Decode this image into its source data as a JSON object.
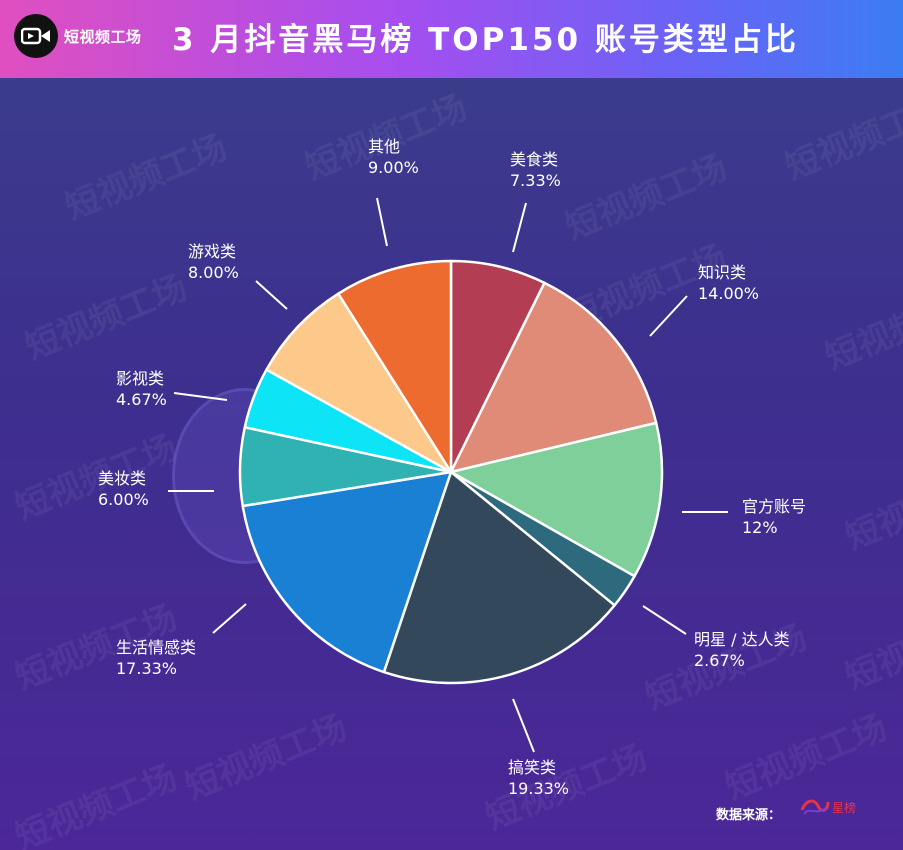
{
  "header": {
    "brand": "短视频工场",
    "title": "3 月抖音黑马榜 TOP150 账号类型占比"
  },
  "watermark_text": "短视频工场",
  "footer": {
    "source_label": "数据来源：",
    "source_name": "星榜"
  },
  "chart_data": {
    "type": "pie",
    "title": "3 月抖音黑马榜 TOP150 账号类型占比",
    "slices": [
      {
        "label": "美食类",
        "value": 7.33,
        "display": "7.33%",
        "color": "#b33d52"
      },
      {
        "label": "知识类",
        "value": 14.0,
        "display": "14.00%",
        "color": "#df8b78"
      },
      {
        "label": "官方账号",
        "value": 12.0,
        "display": "12%",
        "color": "#7fcf9a"
      },
      {
        "label": "明星 / 达人类",
        "value": 2.67,
        "display": "2.67%",
        "color": "#2e6a7e"
      },
      {
        "label": "搞笑类",
        "value": 19.33,
        "display": "19.33%",
        "color": "#34485c"
      },
      {
        "label": "生活情感类",
        "value": 17.33,
        "display": "17.33%",
        "color": "#1a80d4"
      },
      {
        "label": "美妆类",
        "value": 6.0,
        "display": "6.00%",
        "color": "#30b1b2"
      },
      {
        "label": "影视类",
        "value": 4.67,
        "display": "4.67%",
        "color": "#0de4f6"
      },
      {
        "label": "游戏类",
        "value": 8.0,
        "display": "8.00%",
        "color": "#fdc98a"
      },
      {
        "label": "其他",
        "value": 9.0,
        "display": "9.00%",
        "color": "#ee6b2f"
      }
    ]
  }
}
